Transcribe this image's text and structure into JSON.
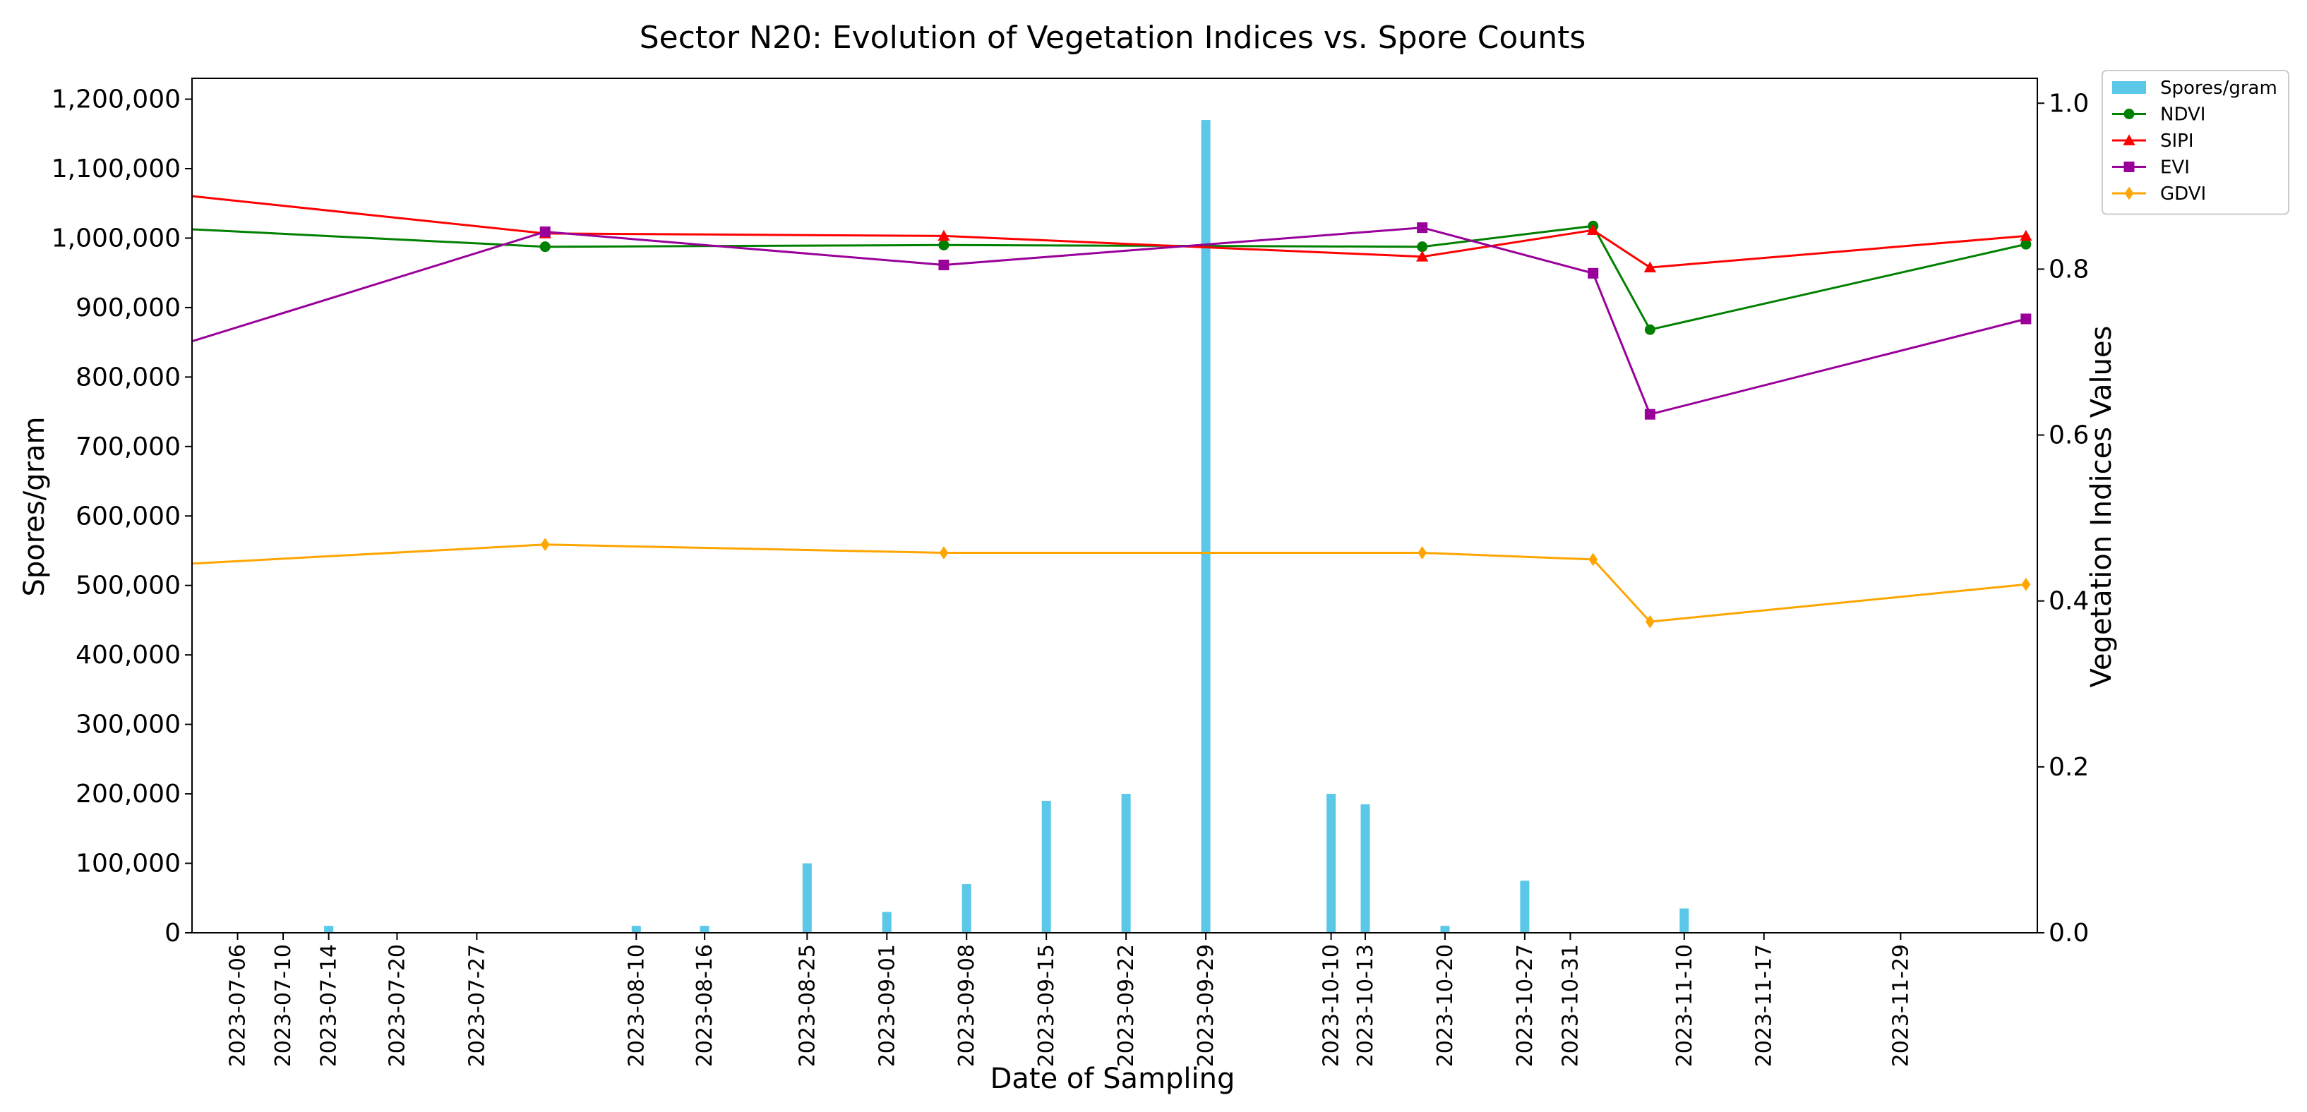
{
  "chart_data": {
    "type": "bar+line",
    "title": "Sector N20: Evolution of Vegetation Indices vs. Spore Counts",
    "xlabel": "Date of Sampling",
    "ylabel_left": "Spores/gram",
    "ylabel_right": "Vegetation Indices Values",
    "ylim_left": [
      0,
      1230000
    ],
    "ylim_right": [
      0,
      1.03
    ],
    "left_ticks": [
      0,
      100000,
      200000,
      300000,
      400000,
      500000,
      600000,
      700000,
      800000,
      900000,
      1000000,
      1100000,
      1200000
    ],
    "left_tick_labels": [
      "0",
      "100,000",
      "200,000",
      "300,000",
      "400,000",
      "500,000",
      "600,000",
      "700,000",
      "800,000",
      "900,000",
      "1,000,000",
      "1,100,000",
      "1,200,000"
    ],
    "right_ticks": [
      0.0,
      0.2,
      0.4,
      0.6,
      0.8,
      1.0
    ],
    "right_tick_labels": [
      "0.0",
      "0.2",
      "0.4",
      "0.6",
      "0.8",
      "1.0"
    ],
    "xrange_dates": [
      "2023-07-02",
      "2023-12-11"
    ],
    "date_ticks": [
      "2023-07-06",
      "2023-07-10",
      "2023-07-14",
      "2023-07-20",
      "2023-07-27",
      "2023-08-10",
      "2023-08-16",
      "2023-08-25",
      "2023-09-01",
      "2023-09-08",
      "2023-09-15",
      "2023-09-22",
      "2023-09-29",
      "2023-10-10",
      "2023-10-13",
      "2023-10-20",
      "2023-10-27",
      "2023-10-31",
      "2023-11-10",
      "2023-11-17",
      "2023-11-29"
    ],
    "bar_series": {
      "name": "Spores/gram",
      "color": "#5bc8e8",
      "points": [
        {
          "date": "2023-07-06",
          "value": 0
        },
        {
          "date": "2023-07-10",
          "value": 0
        },
        {
          "date": "2023-07-14",
          "value": 10000
        },
        {
          "date": "2023-07-20",
          "value": 0
        },
        {
          "date": "2023-07-27",
          "value": 0
        },
        {
          "date": "2023-08-10",
          "value": 10000
        },
        {
          "date": "2023-08-16",
          "value": 10000
        },
        {
          "date": "2023-08-25",
          "value": 100000
        },
        {
          "date": "2023-09-01",
          "value": 30000
        },
        {
          "date": "2023-09-08",
          "value": 70000
        },
        {
          "date": "2023-09-15",
          "value": 190000
        },
        {
          "date": "2023-09-22",
          "value": 200000
        },
        {
          "date": "2023-09-29",
          "value": 1170000
        },
        {
          "date": "2023-10-10",
          "value": 200000
        },
        {
          "date": "2023-10-13",
          "value": 185000
        },
        {
          "date": "2023-10-20",
          "value": 10000
        },
        {
          "date": "2023-10-27",
          "value": 75000
        },
        {
          "date": "2023-10-31",
          "value": 0
        },
        {
          "date": "2023-11-10",
          "value": 35000
        },
        {
          "date": "2023-11-17",
          "value": 0
        },
        {
          "date": "2023-11-29",
          "value": 0
        }
      ]
    },
    "line_series": [
      {
        "name": "NDVI",
        "color": "#008000",
        "marker": "circle",
        "points": [
          {
            "date": "2023-07-02",
            "value": 0.848,
            "marker": false
          },
          {
            "date": "2023-08-02",
            "value": 0.827,
            "marker": true
          },
          {
            "date": "2023-09-06",
            "value": 0.829,
            "marker": true
          },
          {
            "date": "2023-10-18",
            "value": 0.827,
            "marker": true
          },
          {
            "date": "2023-11-02",
            "value": 0.852,
            "marker": true
          },
          {
            "date": "2023-11-07",
            "value": 0.727,
            "marker": true
          },
          {
            "date": "2023-12-10",
            "value": 0.83,
            "marker": true
          }
        ]
      },
      {
        "name": "SIPI",
        "color": "#ff0000",
        "marker": "triangle",
        "points": [
          {
            "date": "2023-07-02",
            "value": 0.888,
            "marker": false
          },
          {
            "date": "2023-08-02",
            "value": 0.843,
            "marker": true
          },
          {
            "date": "2023-09-06",
            "value": 0.84,
            "marker": true
          },
          {
            "date": "2023-10-18",
            "value": 0.815,
            "marker": true
          },
          {
            "date": "2023-11-02",
            "value": 0.847,
            "marker": true
          },
          {
            "date": "2023-11-07",
            "value": 0.802,
            "marker": true
          },
          {
            "date": "2023-12-10",
            "value": 0.84,
            "marker": true
          }
        ]
      },
      {
        "name": "EVI",
        "color": "#990099",
        "marker": "square",
        "points": [
          {
            "date": "2023-07-02",
            "value": 0.713,
            "marker": false
          },
          {
            "date": "2023-08-02",
            "value": 0.845,
            "marker": true
          },
          {
            "date": "2023-09-06",
            "value": 0.805,
            "marker": true
          },
          {
            "date": "2023-10-18",
            "value": 0.85,
            "marker": true
          },
          {
            "date": "2023-11-02",
            "value": 0.795,
            "marker": true
          },
          {
            "date": "2023-11-07",
            "value": 0.625,
            "marker": true
          },
          {
            "date": "2023-12-10",
            "value": 0.74,
            "marker": true
          }
        ]
      },
      {
        "name": "GDVI",
        "color": "#ffa500",
        "marker": "diamond",
        "points": [
          {
            "date": "2023-07-02",
            "value": 0.445,
            "marker": false
          },
          {
            "date": "2023-08-02",
            "value": 0.468,
            "marker": true
          },
          {
            "date": "2023-09-06",
            "value": 0.458,
            "marker": true
          },
          {
            "date": "2023-10-18",
            "value": 0.458,
            "marker": true
          },
          {
            "date": "2023-11-02",
            "value": 0.45,
            "marker": true
          },
          {
            "date": "2023-11-07",
            "value": 0.375,
            "marker": true
          },
          {
            "date": "2023-12-10",
            "value": 0.42,
            "marker": true
          }
        ]
      }
    ],
    "legend": {
      "placement": "outside-top-right",
      "entries": [
        "Spores/gram",
        "NDVI",
        "SIPI",
        "EVI",
        "GDVI"
      ]
    }
  }
}
